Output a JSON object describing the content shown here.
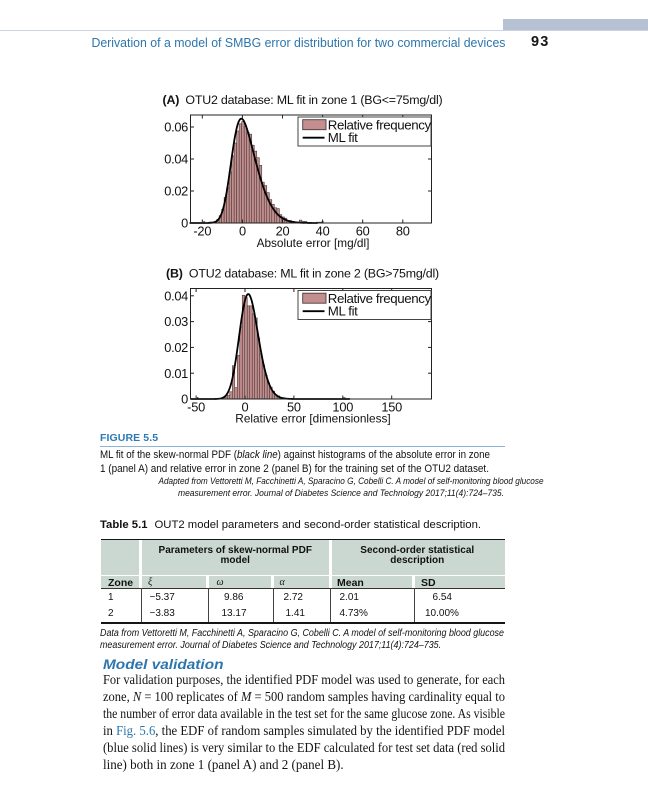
{
  "colors": {
    "heading_blue": "#2d76ad",
    "caption_rule_blue": "#8cb2d4",
    "corner_bar_gray": "#b6c1d3",
    "table_header_teal": "#cbd8d2",
    "histogram_fill": "#c38e8e",
    "histogram_edge": "#4a3939",
    "ml_fit_line": "#000000"
  },
  "header": {
    "title": "Derivation of a model of SMBG error distribution for two commercial devices",
    "page_number": "93"
  },
  "chart_data": [
    {
      "type": "bar",
      "panel": "A",
      "title": "OTU2 database: ML fit in zone 1 (BG<=75mg/dl)",
      "xlabel": "Absolute error [mg/dl]",
      "ylabel": "",
      "xticks": [
        -20,
        0,
        20,
        40,
        60,
        80
      ],
      "yticks": [
        0,
        0.02,
        0.04,
        0.06
      ],
      "xlim": [
        -26.2,
        94.5
      ],
      "ylim": [
        0,
        0.0675
      ],
      "legend": [
        "Relative frequency",
        "ML fit"
      ],
      "fit": {
        "name": "skew-normal PDF",
        "xi": -5.37,
        "omega": 9.86,
        "alpha": 2.72,
        "domain": [
          -26.0,
          37.3
        ]
      },
      "bars": {
        "bin_start": -16.6,
        "bin_width": 1.25,
        "heights": [
          0.0006,
          0.0006,
          0.001,
          0.0022,
          0.0046,
          0.0085,
          0.016,
          0.022,
          0.032,
          0.042,
          0.05,
          0.0575,
          0.062,
          0.0634,
          0.0605,
          0.0565,
          0.0555,
          0.0486,
          0.0449,
          0.0408,
          0.036,
          0.0255,
          0.0234,
          0.019,
          0.0146,
          0.0117,
          0.0095,
          0.009,
          0.0052,
          0.0038,
          0.003,
          0.0015,
          0.0015,
          0.001,
          0.0006,
          0.0006,
          0.0018,
          0.001,
          0.001,
          0,
          0,
          0,
          0,
          0.0005,
          0.0005
        ]
      },
      "extra_bars": [
        {
          "x": -19.35,
          "h": 0.0009,
          "w": 0.6
        },
        {
          "x": 39.7,
          "h": 0.0011,
          "w": 0.6
        }
      ]
    },
    {
      "type": "bar",
      "panel": "B",
      "title": "OTU2 database: ML fit in zone 2 (BG>75mg/dl)",
      "xlabel": "Relative error [dimensionless]",
      "ylabel": "",
      "xticks": [
        -50,
        0,
        50,
        100,
        150
      ],
      "yticks": [
        0,
        0.01,
        0.02,
        0.03,
        0.04
      ],
      "xlim": [
        -55.5,
        190.8
      ],
      "ylim": [
        0,
        0.0428
      ],
      "legend": [
        "Relative frequency",
        "ML fit"
      ],
      "fit": {
        "name": "skew-normal PDF",
        "xi": -3.83,
        "omega": 13.17,
        "alpha": 1.41,
        "domain": [
          -55.0,
          106.8
        ]
      },
      "bars": {
        "bin_start": -20.65,
        "bin_width": 2.55,
        "heights": [
          0.0008,
          0.0015,
          0.0028,
          0.0129,
          0.0044,
          0.0169,
          0.028,
          0.0402,
          0.0393,
          0.0361,
          0.0361,
          0.033,
          0.0314,
          0.0236,
          0.0175,
          0.013,
          0.0092,
          0.0062,
          0.0046,
          0.003,
          0.0016,
          0.0012,
          0.0006,
          0.0005
        ]
      },
      "extra_bars": [
        {
          "x": -48.8,
          "h": 0.0006,
          "w": 0.6
        },
        {
          "x": 100.0,
          "h": 0.00055,
          "w": 2.4
        }
      ]
    }
  ],
  "figure": {
    "caption_label": "FIGURE 5.5",
    "caption_lines": [
      [
        {
          "t": "ML fit of the skew-normal PDF ("
        },
        {
          "t": "black line",
          "s": "i"
        },
        {
          "t": ") against histograms of the absolute error in zone"
        }
      ],
      [
        {
          "t": "1 (panel A) and relative error in zone 2 (panel B) for the training set of the OTU2 dataset."
        }
      ]
    ],
    "source_lines": [
      "Adapted from Vettoretti M, Facchinetti A, Sparacino G, Cobelli C. A model of self-monitoring blood glucose",
      "measurement error. Journal of Diabetes Science and Technology 2017;11(4):724–735."
    ]
  },
  "table": {
    "caption_label": "Table 5.1",
    "caption_text": "OUT2 model parameters and second-order statistical description.",
    "group_headers": [
      {
        "lines": [
          "Parameters of skew-normal PDF",
          "model"
        ]
      },
      {
        "lines": [
          "Second-order statistical",
          "description"
        ]
      }
    ],
    "column_headers": [
      "Zone",
      "ξ",
      "ω",
      "α",
      "Mean",
      "SD"
    ],
    "rows": [
      [
        "1",
        "−5.37",
        "9.86",
        "2.72",
        "2.01",
        "6.54"
      ],
      [
        "2",
        "−3.83",
        "13.17",
        "1.41",
        "4.73%",
        "10.00%"
      ]
    ],
    "note_lines": [
      "Data from Vettoretti M, Facchinetti A, Sparacino G, Cobelli C. A model of self-monitoring blood glucose",
      "measurement error. Journal of Diabetes Science and Technology 2017;11(4):724–735."
    ]
  },
  "section": {
    "heading": "Model validation",
    "paragraph_lines": [
      [
        {
          "t": "For validation purposes, the identified PDF model was used to generate, for each"
        }
      ],
      [
        {
          "t": "zone, "
        },
        {
          "t": "N",
          "s": "i"
        },
        {
          "t": " = 100 replicates of "
        },
        {
          "t": "M",
          "s": "i"
        },
        {
          "t": " = 500 random samples having cardinality equal to"
        }
      ],
      [
        {
          "t": "the number of error data available in the test set for the same glucose zone. As visible"
        }
      ],
      [
        {
          "t": "in "
        },
        {
          "t": "Fig. 5.6",
          "s": "a"
        },
        {
          "t": ", the EDF of random samples simulated by the identified PDF model"
        }
      ],
      [
        {
          "t": "(blue solid lines) is very similar to the EDF calculated for test set data (red solid"
        }
      ],
      [
        {
          "t": "line) both in zone 1 (panel A) and 2 (panel B)."
        }
      ]
    ]
  }
}
